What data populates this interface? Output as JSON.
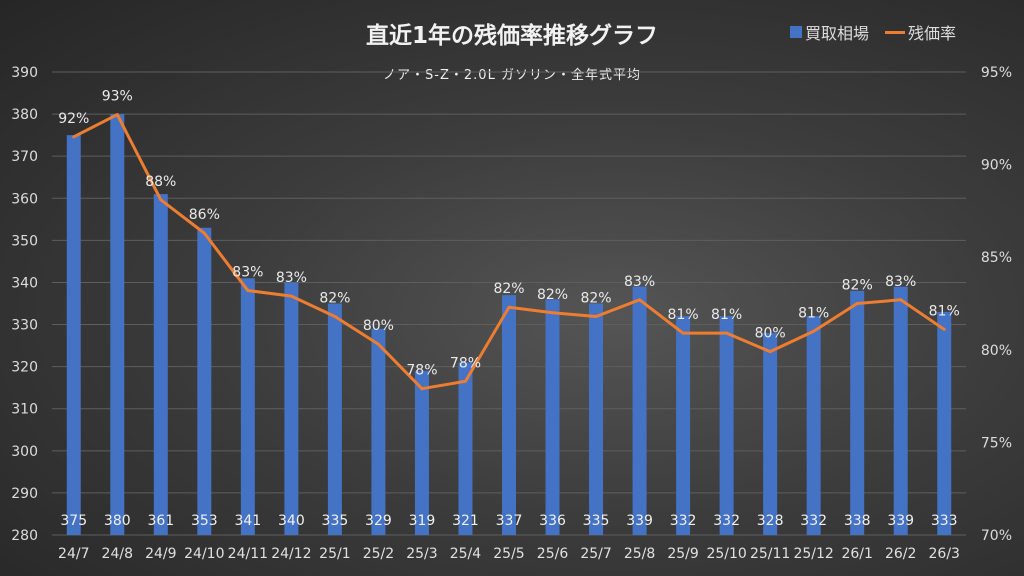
{
  "chart_data": {
    "type": "bar+line",
    "title": "直近1年の残価率推移グラフ",
    "subtitle": "ノア・S-Z・2.0L ガソリン・全年式平均",
    "categories": [
      "24/7",
      "24/8",
      "24/9",
      "24/10",
      "24/11",
      "24/12",
      "25/1",
      "25/2",
      "25/3",
      "25/4",
      "25/5",
      "25/6",
      "25/7",
      "25/8",
      "25/9",
      "25/10",
      "25/11",
      "25/12",
      "26/1",
      "26/2",
      "26/3"
    ],
    "series": [
      {
        "name": "買取相場",
        "type": "bar",
        "axis": "left",
        "color": "#4472c4",
        "values": [
          375,
          380,
          361,
          353,
          341,
          340,
          335,
          329,
          319,
          321,
          337,
          336,
          335,
          339,
          332,
          332,
          328,
          332,
          338,
          339,
          333
        ]
      },
      {
        "name": "残価率",
        "type": "line",
        "axis": "right",
        "color": "#ed7d31",
        "values": [
          91.5,
          92.7,
          88.1,
          86.3,
          83.2,
          82.9,
          81.8,
          80.3,
          77.9,
          78.3,
          82.3,
          82.0,
          81.8,
          82.7,
          80.9,
          80.9,
          79.9,
          81.0,
          82.5,
          82.7,
          81.1
        ],
        "labels": [
          "92%",
          "93%",
          "88%",
          "86%",
          "83%",
          "83%",
          "82%",
          "80%",
          "78%",
          "78%",
          "82%",
          "82%",
          "82%",
          "83%",
          "81%",
          "81%",
          "80%",
          "81%",
          "82%",
          "83%",
          "81%"
        ]
      }
    ],
    "left_axis": {
      "min": 280,
      "max": 390,
      "step": 10,
      "ticks": [
        "280",
        "290",
        "300",
        "310",
        "320",
        "330",
        "340",
        "350",
        "360",
        "370",
        "380",
        "390"
      ]
    },
    "right_axis": {
      "min": 70,
      "max": 95,
      "step": 5,
      "ticks": [
        "70%",
        "75%",
        "80%",
        "85%",
        "90%",
        "95%"
      ]
    },
    "grid": true,
    "legend": "top-right"
  }
}
